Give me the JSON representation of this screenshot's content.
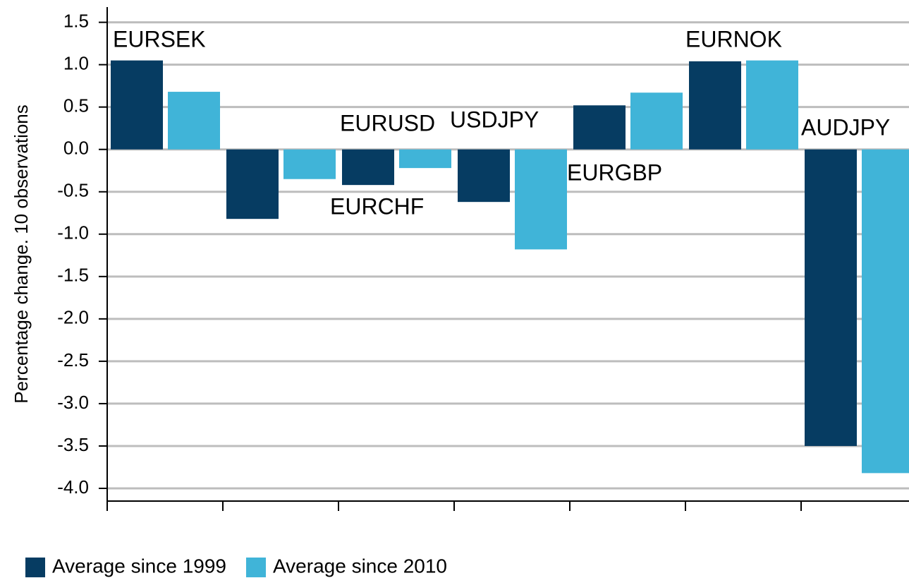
{
  "chart_data": {
    "type": "bar",
    "y_label": "Percentage change. 10 observations",
    "categories": [
      "EURSEK",
      "EURUSD",
      "EURCHF",
      "USDJPY",
      "EURGBP",
      "EURNOK",
      "AUDJPY"
    ],
    "series": [
      {
        "name": "Average since 1999",
        "color": "#063c62",
        "values": [
          1.05,
          -0.82,
          -0.42,
          -0.62,
          0.52,
          1.04,
          -3.5
        ]
      },
      {
        "name": "Average since 2010",
        "color": "#40b4d8",
        "values": [
          0.68,
          -0.35,
          -0.22,
          -1.18,
          0.67,
          1.05,
          -3.82
        ]
      }
    ],
    "ylim": [
      -4.15,
      1.68
    ],
    "yticks": [
      1.5,
      {
        "value": 1,
        "label": "1.0"
      },
      0.5,
      {
        "value": 0,
        "label": "0.0"
      },
      -0.5,
      {
        "value": -1,
        "label": "-1.0"
      },
      -1.5,
      {
        "value": -2,
        "label": "-2.0"
      },
      -2.5,
      {
        "value": -3,
        "label": "-3.0"
      },
      -3.5,
      {
        "value": -4,
        "label": "-4.0"
      }
    ],
    "grid": true,
    "legend": "bottom-left"
  }
}
